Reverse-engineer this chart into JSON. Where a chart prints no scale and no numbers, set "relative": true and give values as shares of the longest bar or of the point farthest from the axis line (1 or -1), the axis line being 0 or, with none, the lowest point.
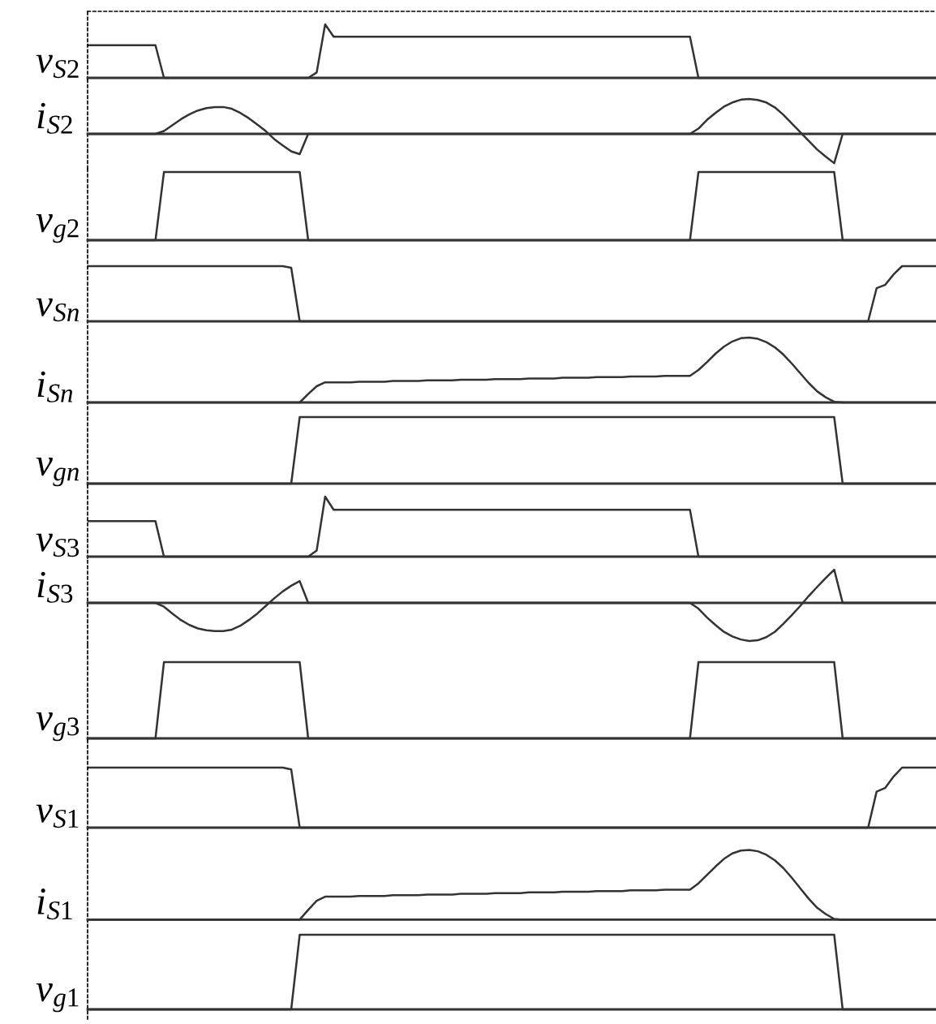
{
  "chart_data": [
    {
      "type": "line",
      "ylabel": "v$_{S2}$",
      "relative": true,
      "tick_labels": false,
      "categories": [
        null,
        null,
        null,
        null,
        null,
        null,
        null,
        null,
        null,
        null,
        null,
        null,
        null,
        null,
        null,
        null,
        null,
        null,
        null,
        null,
        null,
        null,
        null,
        null,
        null,
        null,
        null,
        null,
        null,
        null,
        null,
        null,
        null,
        null,
        null,
        null,
        null,
        null,
        null,
        null,
        null,
        null,
        null,
        null,
        null,
        null,
        null,
        null,
        null,
        null,
        null,
        null,
        null,
        null,
        null,
        null,
        null,
        null,
        null,
        null,
        null,
        null,
        null,
        null,
        null,
        null,
        null,
        null,
        null,
        null,
        null,
        null,
        null,
        null,
        null,
        null,
        null,
        null,
        null,
        null,
        null,
        null,
        null,
        null,
        null,
        null,
        null,
        null,
        null,
        null,
        null,
        null,
        null,
        null,
        null,
        null,
        null,
        null,
        null,
        null,
        null
      ],
      "series": [
        {
          "color": "#333333",
          "values": [
            0.61,
            0.61,
            0.61,
            0.61,
            0.61,
            0.61,
            0.61,
            0.61,
            0.61,
            0,
            0,
            0,
            0,
            0,
            0,
            0,
            0,
            0,
            0,
            0,
            0,
            0,
            0,
            0,
            0,
            0,
            0,
            0.1,
            1,
            0.77,
            0.77,
            0.77,
            0.77,
            0.77,
            0.77,
            0.77,
            0.77,
            0.77,
            0.77,
            0.77,
            0.77,
            0.77,
            0.77,
            0.77,
            0.77,
            0.77,
            0.77,
            0.77,
            0.77,
            0.77,
            0.77,
            0.77,
            0.77,
            0.77,
            0.77,
            0.77,
            0.77,
            0.77,
            0.77,
            0.77,
            0.77,
            0.77,
            0.77,
            0.77,
            0.77,
            0.77,
            0.77,
            0.77,
            0.77,
            0.77,
            0.77,
            0.77,
            0,
            0,
            0,
            0,
            0,
            0,
            0,
            0,
            0,
            0,
            0,
            0,
            0,
            0,
            0,
            0,
            0,
            0,
            0,
            0,
            0,
            0,
            0,
            0,
            0,
            0,
            0,
            0,
            0
          ]
        }
      ]
    },
    {
      "type": "line",
      "ylabel": "i$_{S2}$",
      "relative": true,
      "tick_labels": false,
      "categories": [
        null,
        null,
        null,
        null,
        null,
        null,
        null,
        null,
        null,
        null,
        null,
        null,
        null,
        null,
        null,
        null,
        null,
        null,
        null,
        null,
        null,
        null,
        null,
        null,
        null,
        null,
        null,
        null,
        null,
        null,
        null,
        null,
        null,
        null,
        null,
        null,
        null,
        null,
        null,
        null,
        null,
        null,
        null,
        null,
        null,
        null,
        null,
        null,
        null,
        null,
        null,
        null,
        null,
        null,
        null,
        null,
        null,
        null,
        null,
        null,
        null,
        null,
        null,
        null,
        null,
        null,
        null,
        null,
        null,
        null,
        null,
        null,
        null,
        null,
        null,
        null,
        null,
        null,
        null,
        null,
        null,
        null,
        null,
        null,
        null,
        null,
        null,
        null,
        null,
        null,
        null,
        null,
        null,
        null,
        null,
        null,
        null,
        null,
        null,
        null,
        null
      ],
      "series": [
        {
          "color": "#333333",
          "values": [
            0,
            0,
            0,
            0,
            0,
            0,
            0,
            0,
            0,
            0.08,
            0.25,
            0.42,
            0.56,
            0.67,
            0.74,
            0.77,
            0.77,
            0.72,
            0.6,
            0.45,
            0.27,
            0.08,
            -0.15,
            -0.33,
            -0.5,
            -0.58,
            0,
            0,
            0,
            0,
            0,
            0,
            0,
            0,
            0,
            0,
            0,
            0,
            0,
            0,
            0,
            0,
            0,
            0,
            0,
            0,
            0,
            0,
            0,
            0,
            0,
            0,
            0,
            0,
            0,
            0,
            0,
            0,
            0,
            0,
            0,
            0,
            0,
            0,
            0,
            0,
            0,
            0,
            0,
            0,
            0,
            0,
            0.15,
            0.4,
            0.6,
            0.78,
            0.9,
            0.98,
            1,
            0.97,
            0.9,
            0.76,
            0.55,
            0.3,
            0.05,
            -0.2,
            -0.45,
            -0.65,
            -0.84,
            0,
            0,
            0,
            0,
            0,
            0,
            0,
            0,
            0,
            0,
            0,
            0
          ]
        }
      ]
    },
    {
      "type": "line",
      "ylabel": "v$_{g2}$",
      "relative": true,
      "tick_labels": false,
      "categories": [
        null,
        null,
        null,
        null,
        null,
        null,
        null,
        null,
        null,
        null,
        null,
        null,
        null,
        null,
        null,
        null,
        null,
        null,
        null,
        null,
        null,
        null,
        null,
        null,
        null,
        null,
        null,
        null,
        null,
        null,
        null,
        null,
        null,
        null,
        null,
        null,
        null,
        null,
        null,
        null,
        null,
        null,
        null,
        null,
        null,
        null,
        null,
        null,
        null,
        null,
        null,
        null,
        null,
        null,
        null,
        null,
        null,
        null,
        null,
        null,
        null,
        null,
        null,
        null,
        null,
        null,
        null,
        null,
        null,
        null,
        null,
        null,
        null,
        null,
        null,
        null,
        null,
        null,
        null,
        null,
        null,
        null,
        null,
        null,
        null,
        null,
        null,
        null,
        null,
        null,
        null,
        null,
        null,
        null,
        null,
        null,
        null,
        null,
        null,
        null,
        null
      ],
      "series": [
        {
          "color": "#333333",
          "values": [
            0,
            0,
            0,
            0,
            0,
            0,
            0,
            0,
            0,
            1,
            1,
            1,
            1,
            1,
            1,
            1,
            1,
            1,
            1,
            1,
            1,
            1,
            1,
            1,
            1,
            1,
            0,
            0,
            0,
            0,
            0,
            0,
            0,
            0,
            0,
            0,
            0,
            0,
            0,
            0,
            0,
            0,
            0,
            0,
            0,
            0,
            0,
            0,
            0,
            0,
            0,
            0,
            0,
            0,
            0,
            0,
            0,
            0,
            0,
            0,
            0,
            0,
            0,
            0,
            0,
            0,
            0,
            0,
            0,
            0,
            0,
            0,
            1,
            1,
            1,
            1,
            1,
            1,
            1,
            1,
            1,
            1,
            1,
            1,
            1,
            1,
            1,
            1,
            1,
            0,
            0,
            0,
            0,
            0,
            0,
            0,
            0,
            0,
            0,
            0,
            0
          ]
        }
      ]
    },
    {
      "type": "line",
      "ylabel": "v$_{Sn}$",
      "relative": true,
      "tick_labels": false,
      "categories": [
        null,
        null,
        null,
        null,
        null,
        null,
        null,
        null,
        null,
        null,
        null,
        null,
        null,
        null,
        null,
        null,
        null,
        null,
        null,
        null,
        null,
        null,
        null,
        null,
        null,
        null,
        null,
        null,
        null,
        null,
        null,
        null,
        null,
        null,
        null,
        null,
        null,
        null,
        null,
        null,
        null,
        null,
        null,
        null,
        null,
        null,
        null,
        null,
        null,
        null,
        null,
        null,
        null,
        null,
        null,
        null,
        null,
        null,
        null,
        null,
        null,
        null,
        null,
        null,
        null,
        null,
        null,
        null,
        null,
        null,
        null,
        null,
        null,
        null,
        null,
        null,
        null,
        null,
        null,
        null,
        null,
        null,
        null,
        null,
        null,
        null,
        null,
        null,
        null,
        null,
        null,
        null,
        null,
        null,
        null,
        null,
        null,
        null,
        null,
        null,
        null
      ],
      "series": [
        {
          "color": "#333333",
          "values": [
            1,
            1,
            1,
            1,
            1,
            1,
            1,
            1,
            1,
            1,
            1,
            1,
            1,
            1,
            1,
            1,
            1,
            1,
            1,
            1,
            1,
            1,
            1,
            1,
            0.97,
            0,
            0,
            0,
            0,
            0,
            0,
            0,
            0,
            0,
            0,
            0,
            0,
            0,
            0,
            0,
            0,
            0,
            0,
            0,
            0,
            0,
            0,
            0,
            0,
            0,
            0,
            0,
            0,
            0,
            0,
            0,
            0,
            0,
            0,
            0,
            0,
            0,
            0,
            0,
            0,
            0,
            0,
            0,
            0,
            0,
            0,
            0,
            0,
            0,
            0,
            0,
            0,
            0,
            0,
            0,
            0,
            0,
            0,
            0,
            0,
            0,
            0,
            0,
            0,
            0,
            0,
            0,
            0,
            0.6,
            0.66,
            0.85,
            1,
            1,
            1,
            1,
            1
          ]
        }
      ]
    },
    {
      "type": "line",
      "ylabel": "i$_{Sn}$",
      "relative": true,
      "tick_labels": false,
      "categories": [
        null,
        null,
        null,
        null,
        null,
        null,
        null,
        null,
        null,
        null,
        null,
        null,
        null,
        null,
        null,
        null,
        null,
        null,
        null,
        null,
        null,
        null,
        null,
        null,
        null,
        null,
        null,
        null,
        null,
        null,
        null,
        null,
        null,
        null,
        null,
        null,
        null,
        null,
        null,
        null,
        null,
        null,
        null,
        null,
        null,
        null,
        null,
        null,
        null,
        null,
        null,
        null,
        null,
        null,
        null,
        null,
        null,
        null,
        null,
        null,
        null,
        null,
        null,
        null,
        null,
        null,
        null,
        null,
        null,
        null,
        null,
        null,
        null,
        null,
        null,
        null,
        null,
        null,
        null,
        null,
        null,
        null,
        null,
        null,
        null,
        null,
        null,
        null,
        null,
        null,
        null,
        null,
        null,
        null,
        null,
        null,
        null,
        null,
        null,
        null,
        null
      ],
      "series": [
        {
          "color": "#333333",
          "values": [
            0,
            0,
            0,
            0,
            0,
            0,
            0,
            0,
            0,
            0,
            0,
            0,
            0,
            0,
            0,
            0,
            0,
            0,
            0,
            0,
            0,
            0,
            0,
            0,
            0,
            0,
            0.13,
            0.25,
            0.31,
            0.31,
            0.31,
            0.31,
            0.32,
            0.32,
            0.32,
            0.32,
            0.33,
            0.33,
            0.33,
            0.33,
            0.34,
            0.34,
            0.34,
            0.34,
            0.35,
            0.35,
            0.35,
            0.35,
            0.36,
            0.36,
            0.36,
            0.36,
            0.37,
            0.37,
            0.37,
            0.37,
            0.38,
            0.38,
            0.38,
            0.38,
            0.39,
            0.39,
            0.39,
            0.39,
            0.4,
            0.4,
            0.4,
            0.4,
            0.41,
            0.41,
            0.41,
            0.41,
            0.5,
            0.62,
            0.75,
            0.86,
            0.94,
            0.99,
            1,
            0.98,
            0.93,
            0.85,
            0.74,
            0.6,
            0.45,
            0.3,
            0.17,
            0.08,
            0.01,
            0,
            0,
            0,
            0,
            0,
            0,
            0,
            0,
            0,
            0,
            0,
            0
          ]
        }
      ]
    },
    {
      "type": "line",
      "ylabel": "v$_{gn}$",
      "relative": true,
      "tick_labels": false,
      "categories": [
        null,
        null,
        null,
        null,
        null,
        null,
        null,
        null,
        null,
        null,
        null,
        null,
        null,
        null,
        null,
        null,
        null,
        null,
        null,
        null,
        null,
        null,
        null,
        null,
        null,
        null,
        null,
        null,
        null,
        null,
        null,
        null,
        null,
        null,
        null,
        null,
        null,
        null,
        null,
        null,
        null,
        null,
        null,
        null,
        null,
        null,
        null,
        null,
        null,
        null,
        null,
        null,
        null,
        null,
        null,
        null,
        null,
        null,
        null,
        null,
        null,
        null,
        null,
        null,
        null,
        null,
        null,
        null,
        null,
        null,
        null,
        null,
        null,
        null,
        null,
        null,
        null,
        null,
        null,
        null,
        null,
        null,
        null,
        null,
        null,
        null,
        null,
        null,
        null,
        null,
        null,
        null,
        null,
        null,
        null,
        null,
        null,
        null,
        null,
        null,
        null
      ],
      "series": [
        {
          "color": "#333333",
          "values": [
            0,
            0,
            0,
            0,
            0,
            0,
            0,
            0,
            0,
            0,
            0,
            0,
            0,
            0,
            0,
            0,
            0,
            0,
            0,
            0,
            0,
            0,
            0,
            0,
            0,
            1,
            1,
            1,
            1,
            1,
            1,
            1,
            1,
            1,
            1,
            1,
            1,
            1,
            1,
            1,
            1,
            1,
            1,
            1,
            1,
            1,
            1,
            1,
            1,
            1,
            1,
            1,
            1,
            1,
            1,
            1,
            1,
            1,
            1,
            1,
            1,
            1,
            1,
            1,
            1,
            1,
            1,
            1,
            1,
            1,
            1,
            1,
            1,
            1,
            1,
            1,
            1,
            1,
            1,
            1,
            1,
            1,
            1,
            1,
            1,
            1,
            1,
            1,
            1,
            0,
            0,
            0,
            0,
            0,
            0,
            0,
            0,
            0,
            0,
            0,
            0
          ]
        }
      ]
    },
    {
      "type": "line",
      "ylabel": "v$_{S3}$",
      "relative": true,
      "tick_labels": false,
      "categories": [
        null,
        null,
        null,
        null,
        null,
        null,
        null,
        null,
        null,
        null,
        null,
        null,
        null,
        null,
        null,
        null,
        null,
        null,
        null,
        null,
        null,
        null,
        null,
        null,
        null,
        null,
        null,
        null,
        null,
        null,
        null,
        null,
        null,
        null,
        null,
        null,
        null,
        null,
        null,
        null,
        null,
        null,
        null,
        null,
        null,
        null,
        null,
        null,
        null,
        null,
        null,
        null,
        null,
        null,
        null,
        null,
        null,
        null,
        null,
        null,
        null,
        null,
        null,
        null,
        null,
        null,
        null,
        null,
        null,
        null,
        null,
        null,
        null,
        null,
        null,
        null,
        null,
        null,
        null,
        null,
        null,
        null,
        null,
        null,
        null,
        null,
        null,
        null,
        null,
        null,
        null,
        null,
        null,
        null,
        null,
        null,
        null,
        null,
        null,
        null,
        null
      ],
      "series": [
        {
          "color": "#333333",
          "values": [
            0.59,
            0.59,
            0.59,
            0.59,
            0.59,
            0.59,
            0.59,
            0.59,
            0.59,
            0,
            0,
            0,
            0,
            0,
            0,
            0,
            0,
            0,
            0,
            0,
            0,
            0,
            0,
            0,
            0,
            0,
            0,
            0.1,
            1,
            0.78,
            0.78,
            0.78,
            0.78,
            0.78,
            0.78,
            0.78,
            0.78,
            0.78,
            0.78,
            0.78,
            0.78,
            0.78,
            0.78,
            0.78,
            0.78,
            0.78,
            0.78,
            0.78,
            0.78,
            0.78,
            0.78,
            0.78,
            0.78,
            0.78,
            0.78,
            0.78,
            0.78,
            0.78,
            0.78,
            0.78,
            0.78,
            0.78,
            0.78,
            0.78,
            0.78,
            0.78,
            0.78,
            0.78,
            0.78,
            0.78,
            0.78,
            0.78,
            0,
            0,
            0,
            0,
            0,
            0,
            0,
            0,
            0,
            0,
            0,
            0,
            0,
            0,
            0,
            0,
            0,
            0,
            0,
            0,
            0,
            0,
            0,
            0,
            0,
            0,
            0,
            0,
            0
          ]
        }
      ]
    },
    {
      "type": "line",
      "ylabel": "i$_{S3}$",
      "relative": true,
      "tick_labels": false,
      "categories": [
        null,
        null,
        null,
        null,
        null,
        null,
        null,
        null,
        null,
        null,
        null,
        null,
        null,
        null,
        null,
        null,
        null,
        null,
        null,
        null,
        null,
        null,
        null,
        null,
        null,
        null,
        null,
        null,
        null,
        null,
        null,
        null,
        null,
        null,
        null,
        null,
        null,
        null,
        null,
        null,
        null,
        null,
        null,
        null,
        null,
        null,
        null,
        null,
        null,
        null,
        null,
        null,
        null,
        null,
        null,
        null,
        null,
        null,
        null,
        null,
        null,
        null,
        null,
        null,
        null,
        null,
        null,
        null,
        null,
        null,
        null,
        null,
        null,
        null,
        null,
        null,
        null,
        null,
        null,
        null,
        null,
        null,
        null,
        null,
        null,
        null,
        null,
        null,
        null,
        null,
        null,
        null,
        null,
        null,
        null,
        null,
        null,
        null,
        null,
        null,
        null
      ],
      "series": [
        {
          "color": "#333333",
          "values": [
            0,
            0,
            0,
            0,
            0,
            0,
            0,
            0,
            0,
            -0.1,
            -0.28,
            -0.45,
            -0.58,
            -0.67,
            -0.72,
            -0.74,
            -0.74,
            -0.7,
            -0.6,
            -0.45,
            -0.28,
            -0.08,
            0.12,
            0.3,
            0.45,
            0.57,
            0,
            0,
            0,
            0,
            0,
            0,
            0,
            0,
            0,
            0,
            0,
            0,
            0,
            0,
            0,
            0,
            0,
            0,
            0,
            0,
            0,
            0,
            0,
            0,
            0,
            0,
            0,
            0,
            0,
            0,
            0,
            0,
            0,
            0,
            0,
            0,
            0,
            0,
            0,
            0,
            0,
            0,
            0,
            0,
            0,
            0,
            -0.15,
            -0.38,
            -0.58,
            -0.76,
            -0.88,
            -0.96,
            -1,
            -0.98,
            -0.9,
            -0.76,
            -0.55,
            -0.32,
            -0.08,
            0.18,
            0.42,
            0.65,
            0.87,
            0,
            0,
            0,
            0,
            0,
            0,
            0,
            0,
            0,
            0,
            0,
            0
          ]
        }
      ]
    },
    {
      "type": "line",
      "ylabel": "v$_{g3}$",
      "relative": true,
      "tick_labels": false,
      "categories": [
        null,
        null,
        null,
        null,
        null,
        null,
        null,
        null,
        null,
        null,
        null,
        null,
        null,
        null,
        null,
        null,
        null,
        null,
        null,
        null,
        null,
        null,
        null,
        null,
        null,
        null,
        null,
        null,
        null,
        null,
        null,
        null,
        null,
        null,
        null,
        null,
        null,
        null,
        null,
        null,
        null,
        null,
        null,
        null,
        null,
        null,
        null,
        null,
        null,
        null,
        null,
        null,
        null,
        null,
        null,
        null,
        null,
        null,
        null,
        null,
        null,
        null,
        null,
        null,
        null,
        null,
        null,
        null,
        null,
        null,
        null,
        null,
        null,
        null,
        null,
        null,
        null,
        null,
        null,
        null,
        null,
        null,
        null,
        null,
        null,
        null,
        null,
        null,
        null,
        null,
        null,
        null,
        null,
        null,
        null,
        null,
        null,
        null,
        null,
        null,
        null
      ],
      "series": [
        {
          "color": "#333333",
          "values": [
            0,
            0,
            0,
            0,
            0,
            0,
            0,
            0,
            0,
            1,
            1,
            1,
            1,
            1,
            1,
            1,
            1,
            1,
            1,
            1,
            1,
            1,
            1,
            1,
            1,
            1,
            0,
            0,
            0,
            0,
            0,
            0,
            0,
            0,
            0,
            0,
            0,
            0,
            0,
            0,
            0,
            0,
            0,
            0,
            0,
            0,
            0,
            0,
            0,
            0,
            0,
            0,
            0,
            0,
            0,
            0,
            0,
            0,
            0,
            0,
            0,
            0,
            0,
            0,
            0,
            0,
            0,
            0,
            0,
            0,
            0,
            0,
            1,
            1,
            1,
            1,
            1,
            1,
            1,
            1,
            1,
            1,
            1,
            1,
            1,
            1,
            1,
            1,
            1,
            0,
            0,
            0,
            0,
            0,
            0,
            0,
            0,
            0,
            0,
            0,
            0
          ]
        }
      ]
    },
    {
      "type": "line",
      "ylabel": "v$_{S1}$",
      "relative": true,
      "tick_labels": false,
      "categories": [
        null,
        null,
        null,
        null,
        null,
        null,
        null,
        null,
        null,
        null,
        null,
        null,
        null,
        null,
        null,
        null,
        null,
        null,
        null,
        null,
        null,
        null,
        null,
        null,
        null,
        null,
        null,
        null,
        null,
        null,
        null,
        null,
        null,
        null,
        null,
        null,
        null,
        null,
        null,
        null,
        null,
        null,
        null,
        null,
        null,
        null,
        null,
        null,
        null,
        null,
        null,
        null,
        null,
        null,
        null,
        null,
        null,
        null,
        null,
        null,
        null,
        null,
        null,
        null,
        null,
        null,
        null,
        null,
        null,
        null,
        null,
        null,
        null,
        null,
        null,
        null,
        null,
        null,
        null,
        null,
        null,
        null,
        null,
        null,
        null,
        null,
        null,
        null,
        null,
        null,
        null,
        null,
        null,
        null,
        null,
        null,
        null,
        null,
        null,
        null,
        null
      ],
      "series": [
        {
          "color": "#333333",
          "values": [
            1,
            1,
            1,
            1,
            1,
            1,
            1,
            1,
            1,
            1,
            1,
            1,
            1,
            1,
            1,
            1,
            1,
            1,
            1,
            1,
            1,
            1,
            1,
            1,
            0.97,
            0,
            0,
            0,
            0,
            0,
            0,
            0,
            0,
            0,
            0,
            0,
            0,
            0,
            0,
            0,
            0,
            0,
            0,
            0,
            0,
            0,
            0,
            0,
            0,
            0,
            0,
            0,
            0,
            0,
            0,
            0,
            0,
            0,
            0,
            0,
            0,
            0,
            0,
            0,
            0,
            0,
            0,
            0,
            0,
            0,
            0,
            0,
            0,
            0,
            0,
            0,
            0,
            0,
            0,
            0,
            0,
            0,
            0,
            0,
            0,
            0,
            0,
            0,
            0,
            0,
            0,
            0,
            0,
            0.6,
            0.66,
            0.85,
            1,
            1,
            1,
            1,
            1
          ]
        }
      ]
    },
    {
      "type": "line",
      "ylabel": "i$_{S1}$",
      "relative": true,
      "tick_labels": false,
      "categories": [
        null,
        null,
        null,
        null,
        null,
        null,
        null,
        null,
        null,
        null,
        null,
        null,
        null,
        null,
        null,
        null,
        null,
        null,
        null,
        null,
        null,
        null,
        null,
        null,
        null,
        null,
        null,
        null,
        null,
        null,
        null,
        null,
        null,
        null,
        null,
        null,
        null,
        null,
        null,
        null,
        null,
        null,
        null,
        null,
        null,
        null,
        null,
        null,
        null,
        null,
        null,
        null,
        null,
        null,
        null,
        null,
        null,
        null,
        null,
        null,
        null,
        null,
        null,
        null,
        null,
        null,
        null,
        null,
        null,
        null,
        null,
        null,
        null,
        null,
        null,
        null,
        null,
        null,
        null,
        null,
        null,
        null,
        null,
        null,
        null,
        null,
        null,
        null,
        null,
        null,
        null,
        null,
        null,
        null,
        null,
        null,
        null,
        null,
        null,
        null,
        null
      ],
      "series": [
        {
          "color": "#333333",
          "values": [
            0,
            0,
            0,
            0,
            0,
            0,
            0,
            0,
            0,
            0,
            0,
            0,
            0,
            0,
            0,
            0,
            0,
            0,
            0,
            0,
            0,
            0,
            0,
            0,
            0,
            0,
            0.14,
            0.27,
            0.33,
            0.33,
            0.33,
            0.33,
            0.34,
            0.34,
            0.34,
            0.34,
            0.35,
            0.35,
            0.35,
            0.35,
            0.36,
            0.36,
            0.36,
            0.36,
            0.37,
            0.37,
            0.37,
            0.37,
            0.38,
            0.38,
            0.38,
            0.38,
            0.39,
            0.39,
            0.39,
            0.39,
            0.4,
            0.4,
            0.4,
            0.4,
            0.41,
            0.41,
            0.41,
            0.41,
            0.42,
            0.42,
            0.42,
            0.42,
            0.43,
            0.43,
            0.43,
            0.43,
            0.52,
            0.64,
            0.76,
            0.87,
            0.95,
            0.99,
            1,
            0.98,
            0.93,
            0.85,
            0.74,
            0.6,
            0.45,
            0.3,
            0.17,
            0.08,
            0.01,
            0,
            0,
            0,
            0,
            0,
            0,
            0,
            0,
            0,
            0,
            0,
            0
          ]
        }
      ]
    },
    {
      "type": "line",
      "ylabel": "v$_{g1}$",
      "relative": true,
      "tick_labels": false,
      "categories": [
        null,
        null,
        null,
        null,
        null,
        null,
        null,
        null,
        null,
        null,
        null,
        null,
        null,
        null,
        null,
        null,
        null,
        null,
        null,
        null,
        null,
        null,
        null,
        null,
        null,
        null,
        null,
        null,
        null,
        null,
        null,
        null,
        null,
        null,
        null,
        null,
        null,
        null,
        null,
        null,
        null,
        null,
        null,
        null,
        null,
        null,
        null,
        null,
        null,
        null,
        null,
        null,
        null,
        null,
        null,
        null,
        null,
        null,
        null,
        null,
        null,
        null,
        null,
        null,
        null,
        null,
        null,
        null,
        null,
        null,
        null,
        null,
        null,
        null,
        null,
        null,
        null,
        null,
        null,
        null,
        null,
        null,
        null,
        null,
        null,
        null,
        null,
        null,
        null,
        null,
        null,
        null,
        null,
        null,
        null,
        null,
        null,
        null,
        null,
        null,
        null
      ],
      "series": [
        {
          "color": "#333333",
          "values": [
            0,
            0,
            0,
            0,
            0,
            0,
            0,
            0,
            0,
            0,
            0,
            0,
            0,
            0,
            0,
            0,
            0,
            0,
            0,
            0,
            0,
            0,
            0,
            0,
            0,
            1,
            1,
            1,
            1,
            1,
            1,
            1,
            1,
            1,
            1,
            1,
            1,
            1,
            1,
            1,
            1,
            1,
            1,
            1,
            1,
            1,
            1,
            1,
            1,
            1,
            1,
            1,
            1,
            1,
            1,
            1,
            1,
            1,
            1,
            1,
            1,
            1,
            1,
            1,
            1,
            1,
            1,
            1,
            1,
            1,
            1,
            1,
            1,
            1,
            1,
            1,
            1,
            1,
            1,
            1,
            1,
            1,
            1,
            1,
            1,
            1,
            1,
            1,
            1,
            0,
            0,
            0,
            0,
            0,
            0,
            0,
            0,
            0,
            0,
            0,
            0
          ]
        }
      ]
    }
  ]
}
